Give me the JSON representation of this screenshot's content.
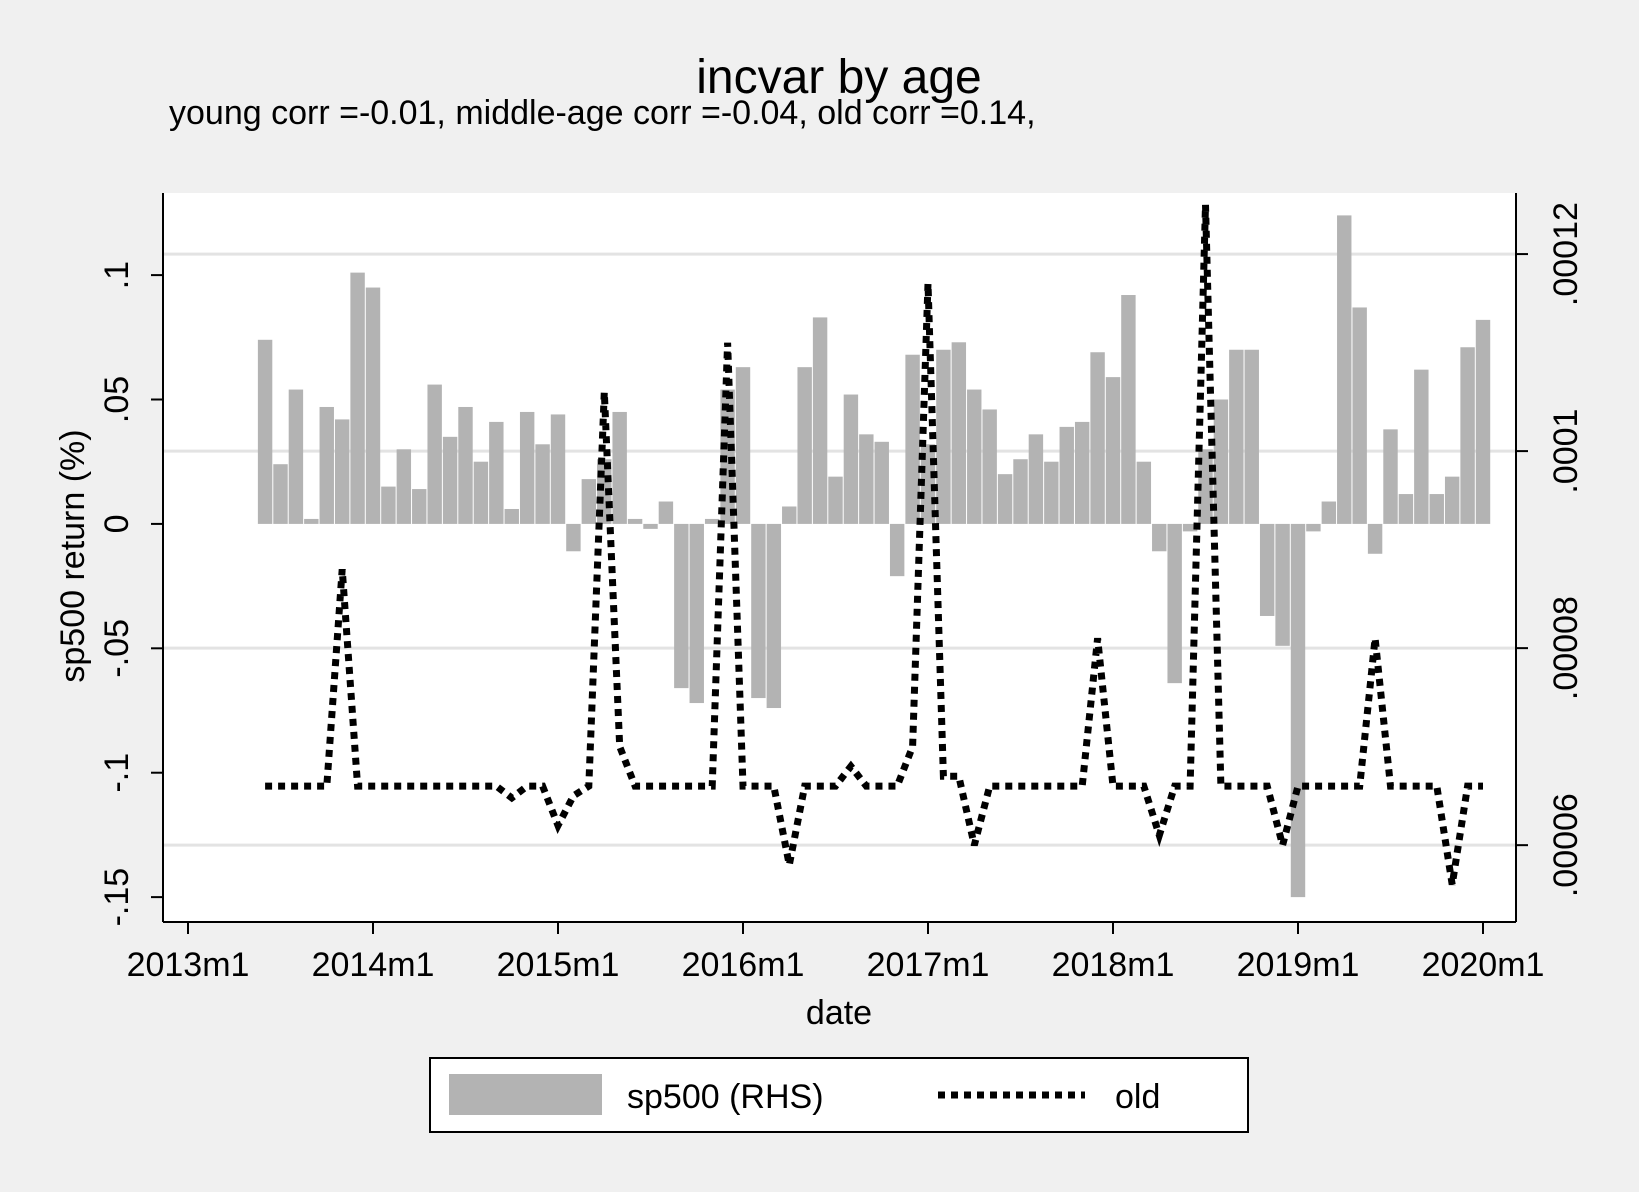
{
  "chart_data": {
    "type": "bar+line",
    "title": "incvar by age",
    "subtitle": "young corr =-0.01, middle-age corr =-0.04, old corr =0.14,",
    "xlabel": "date",
    "ylabel_left": "sp500 return (%)",
    "ylabel_right": "",
    "x_ticks": [
      "2013m1",
      "2014m1",
      "2015m1",
      "2016m1",
      "2017m1",
      "2018m1",
      "2019m1",
      "2020m1"
    ],
    "y_left_ticks": [
      ".1",
      ".05",
      "0",
      "-.05",
      "-.1",
      "-.15"
    ],
    "y_left_tick_values": [
      0.1,
      0.05,
      0,
      -0.05,
      -0.1,
      -0.15
    ],
    "y_right_ticks": [
      ".00012",
      ".0001",
      ".00008",
      ".00006"
    ],
    "y_right_tick_values": [
      0.00012,
      0.0001,
      8e-05,
      6e-05
    ],
    "ylim_left": [
      -0.16,
      0.133
    ],
    "ylim_right": [
      5.22e-05,
      0.0001262
    ],
    "grid": true,
    "legend_position": "bottom",
    "colors": {
      "bars": "#b3b3b3",
      "line": "#000000",
      "background": "#f0f0f0",
      "plot": "#ffffff"
    },
    "series": [
      {
        "name": "sp500 (RHS)",
        "type": "bar",
        "axis": "left",
        "start": "2013m6",
        "values": [
          0.074,
          0.024,
          0.054,
          0.002,
          0.047,
          0.042,
          0.101,
          0.095,
          0.015,
          0.03,
          0.014,
          0.056,
          0.035,
          0.047,
          0.025,
          0.041,
          0.006,
          0.045,
          0.032,
          0.044,
          -0.011,
          0.018,
          0.026,
          0.045,
          0.002,
          -0.002,
          0.009,
          -0.066,
          -0.072,
          0.002,
          0.054,
          0.063,
          -0.07,
          -0.074,
          0.007,
          0.063,
          0.083,
          0.019,
          0.052,
          0.036,
          0.033,
          -0.021,
          0.068,
          0.032,
          0.07,
          0.073,
          0.054,
          0.046,
          0.02,
          0.026,
          0.036,
          0.025,
          0.039,
          0.041,
          0.069,
          0.059,
          0.092,
          0.025,
          -0.011,
          -0.064,
          -0.003,
          0.03,
          0.05,
          0.07,
          0.07,
          -0.037,
          -0.049,
          -0.15,
          -0.003,
          0.009,
          0.124,
          0.087,
          -0.012,
          0.038,
          0.012,
          0.062,
          0.012,
          0.019,
          0.071,
          0.082
        ]
      },
      {
        "name": "old",
        "type": "line",
        "style": "dotted",
        "axis": "right",
        "start": "2013m6",
        "values": [
          6.6e-05,
          6.6e-05,
          6.6e-05,
          6.6e-05,
          6.6e-05,
          8.8e-05,
          6.6e-05,
          6.6e-05,
          6.6e-05,
          6.6e-05,
          6.6e-05,
          6.6e-05,
          6.6e-05,
          6.6e-05,
          6.6e-05,
          6.6e-05,
          6.48e-05,
          6.6e-05,
          6.6e-05,
          6.2e-05,
          6.5e-05,
          6.6e-05,
          0.000106,
          7e-05,
          6.6e-05,
          6.6e-05,
          6.6e-05,
          6.6e-05,
          6.6e-05,
          6.6e-05,
          0.000111,
          6.6e-05,
          6.6e-05,
          6.6e-05,
          5.8e-05,
          6.6e-05,
          6.6e-05,
          6.6e-05,
          6.8e-05,
          6.6e-05,
          6.6e-05,
          6.6e-05,
          7e-05,
          0.000117,
          6.7e-05,
          6.7e-05,
          6e-05,
          6.6e-05,
          6.6e-05,
          6.6e-05,
          6.6e-05,
          6.6e-05,
          6.6e-05,
          6.6e-05,
          8.1e-05,
          6.6e-05,
          6.6e-05,
          6.6e-05,
          6.1e-05,
          6.6e-05,
          6.6e-05,
          0.000125,
          6.6e-05,
          6.6e-05,
          6.6e-05,
          6.6e-05,
          6e-05,
          6.6e-05,
          6.6e-05,
          6.6e-05,
          6.6e-05,
          6.6e-05,
          8.1e-05,
          6.6e-05,
          6.6e-05,
          6.6e-05,
          6.6e-05,
          5.6e-05,
          6.6e-05,
          6.6e-05
        ]
      }
    ]
  }
}
